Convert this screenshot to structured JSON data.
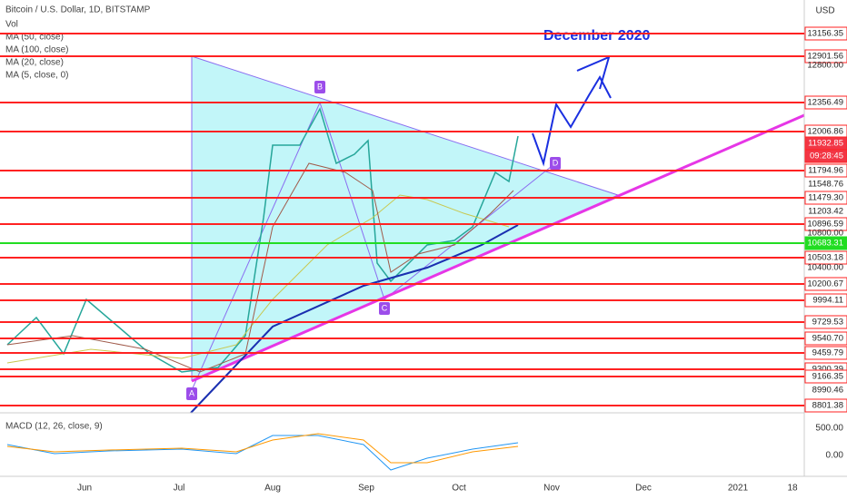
{
  "header": {
    "symbol": "Bitcoin / U.S. Dollar, 1D, BITSTAMP",
    "indicators": [
      "Vol",
      "MA (50, close)",
      "MA (100, close)",
      "MA (20, close)",
      "MA (5, close, 0)"
    ],
    "currency": "USD"
  },
  "annotation": "December 2020",
  "points": [
    "A",
    "B",
    "C",
    "D"
  ],
  "price_axis": [
    "13156.35",
    "12901.56",
    "12800.00",
    "12356.49",
    "12006.86",
    "11932.85",
    "09:28:45",
    "11794.96",
    "11548.76",
    "11479.30",
    "11203.42",
    "10896.59",
    "10800.00",
    "10683.31",
    "10503.18",
    "10400.00",
    "10200.67",
    "9994.11",
    "9729.53",
    "9540.70",
    "9459.79",
    "9300.39",
    "9166.35",
    "8990.46",
    "8801.38"
  ],
  "macd": {
    "label": "MACD (12, 26, close, 9)",
    "axis": [
      "500.00",
      "0.00"
    ]
  },
  "time_axis": [
    "Jun",
    "Jul",
    "Aug",
    "Sep",
    "Oct",
    "Nov",
    "Dec",
    "2021",
    "18"
  ]
}
